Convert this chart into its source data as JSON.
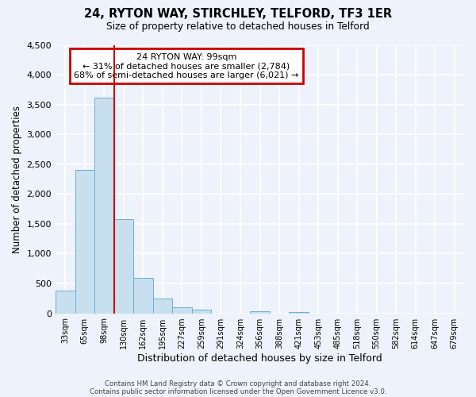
{
  "title": "24, RYTON WAY, STIRCHLEY, TELFORD, TF3 1ER",
  "subtitle": "Size of property relative to detached houses in Telford",
  "xlabel": "Distribution of detached houses by size in Telford",
  "ylabel": "Number of detached properties",
  "bar_labels": [
    "33sqm",
    "65sqm",
    "98sqm",
    "130sqm",
    "162sqm",
    "195sqm",
    "227sqm",
    "259sqm",
    "291sqm",
    "324sqm",
    "356sqm",
    "388sqm",
    "421sqm",
    "453sqm",
    "485sqm",
    "518sqm",
    "550sqm",
    "582sqm",
    "614sqm",
    "647sqm",
    "679sqm"
  ],
  "bar_values": [
    385,
    2410,
    3620,
    1580,
    600,
    245,
    105,
    60,
    0,
    0,
    30,
    0,
    20,
    0,
    0,
    0,
    0,
    0,
    0,
    0,
    0
  ],
  "bar_color": "#c8dff0",
  "bar_edge_color": "#6baed6",
  "property_line_index": 2,
  "annotation_title": "24 RYTON WAY: 99sqm",
  "annotation_line1": "← 31% of detached houses are smaller (2,784)",
  "annotation_line2": "68% of semi-detached houses are larger (6,021) →",
  "annotation_box_color": "#ffffff",
  "annotation_box_edge": "#cc0000",
  "vertical_line_color": "#cc0000",
  "ylim": [
    0,
    4500
  ],
  "yticks": [
    0,
    500,
    1000,
    1500,
    2000,
    2500,
    3000,
    3500,
    4000,
    4500
  ],
  "footer1": "Contains HM Land Registry data © Crown copyright and database right 2024.",
  "footer2": "Contains public sector information licensed under the Open Government Licence v3.0.",
  "background_color": "#eef2fa"
}
